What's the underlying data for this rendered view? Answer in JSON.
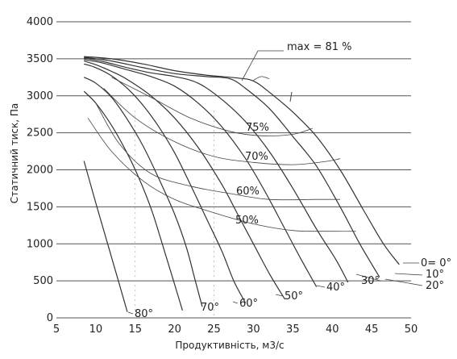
{
  "chart_data": {
    "type": "line",
    "title": "",
    "xlabel": "Продуктивність, м3/с",
    "ylabel": "Статичний тиск, Па",
    "xlim": [
      5,
      50
    ],
    "ylim": [
      0,
      4000
    ],
    "xticks": [
      "5",
      "10",
      "15",
      "20",
      "25",
      "30",
      "35",
      "40",
      "45",
      "50"
    ],
    "yticks": [
      "0",
      "500",
      "1000",
      "1500",
      "2000",
      "2500",
      "3000",
      "3500",
      "4000"
    ],
    "grid": "horizontal",
    "series": [
      {
        "label": "0= 0°",
        "points": [
          [
            8.5,
            3530
          ],
          [
            12,
            3500
          ],
          [
            16,
            3430
          ],
          [
            20,
            3340
          ],
          [
            24,
            3280
          ],
          [
            28,
            3240
          ],
          [
            30,
            3200
          ],
          [
            32,
            3050
          ],
          [
            35,
            2780
          ],
          [
            38,
            2450
          ],
          [
            41,
            2000
          ],
          [
            44,
            1450
          ],
          [
            46.5,
            1000
          ],
          [
            48.5,
            720
          ]
        ]
      },
      {
        "label": "10°",
        "points": [
          [
            8.5,
            3520
          ],
          [
            12,
            3470
          ],
          [
            16,
            3380
          ],
          [
            20,
            3300
          ],
          [
            24,
            3260
          ],
          [
            27,
            3230
          ],
          [
            29,
            3100
          ],
          [
            32,
            2830
          ],
          [
            35,
            2450
          ],
          [
            38,
            2050
          ],
          [
            41,
            1500
          ],
          [
            43.5,
            1000
          ],
          [
            46,
            550
          ]
        ]
      },
      {
        "label": "20°",
        "points": [
          [
            8.5,
            3510
          ],
          [
            11,
            3460
          ],
          [
            14,
            3380
          ],
          [
            17,
            3310
          ],
          [
            20,
            3260
          ],
          [
            23,
            3170
          ],
          [
            26,
            2950
          ],
          [
            29,
            2650
          ],
          [
            32,
            2250
          ],
          [
            35,
            1750
          ],
          [
            38,
            1200
          ],
          [
            40.5,
            780
          ],
          [
            42,
            480
          ]
        ]
      },
      {
        "label": "30°",
        "points": [
          [
            8.5,
            3490
          ],
          [
            11,
            3440
          ],
          [
            14,
            3350
          ],
          [
            17,
            3260
          ],
          [
            20,
            3130
          ],
          [
            23,
            2900
          ],
          [
            26,
            2580
          ],
          [
            29,
            2150
          ],
          [
            31.5,
            1700
          ],
          [
            34,
            1200
          ],
          [
            36,
            800
          ],
          [
            38,
            420
          ]
        ]
      },
      {
        "label": "40°",
        "points": [
          [
            8.5,
            3470
          ],
          [
            10,
            3420
          ],
          [
            12,
            3330
          ],
          [
            14,
            3220
          ],
          [
            17,
            3000
          ],
          [
            20,
            2700
          ],
          [
            23,
            2300
          ],
          [
            26,
            1800
          ],
          [
            28,
            1400
          ],
          [
            30,
            1000
          ],
          [
            32,
            600
          ],
          [
            34,
            250
          ]
        ]
      },
      {
        "label": "50°",
        "points": [
          [
            8.5,
            3430
          ],
          [
            10,
            3380
          ],
          [
            12,
            3270
          ],
          [
            14,
            3100
          ],
          [
            16,
            2870
          ],
          [
            18,
            2580
          ],
          [
            20,
            2230
          ],
          [
            22,
            1800
          ],
          [
            24,
            1350
          ],
          [
            26,
            900
          ],
          [
            27.5,
            500
          ],
          [
            29,
            200
          ]
        ]
      },
      {
        "label": "60°",
        "points": [
          [
            8.5,
            3250
          ],
          [
            10,
            3170
          ],
          [
            12,
            2980
          ],
          [
            14,
            2680
          ],
          [
            16,
            2320
          ],
          [
            18,
            1880
          ],
          [
            20,
            1400
          ],
          [
            21.5,
            950
          ],
          [
            22.5,
            550
          ],
          [
            23.5,
            150
          ]
        ]
      },
      {
        "label": "70°",
        "points": [
          [
            8.5,
            3060
          ],
          [
            10,
            2900
          ],
          [
            12,
            2600
          ],
          [
            14,
            2220
          ],
          [
            15.5,
            1880
          ],
          [
            17,
            1480
          ],
          [
            18,
            1150
          ],
          [
            19,
            800
          ],
          [
            20,
            450
          ],
          [
            21,
            100
          ]
        ]
      },
      {
        "label": "80°",
        "points": [
          [
            8.5,
            2120
          ],
          [
            10,
            1550
          ],
          [
            11.5,
            1000
          ],
          [
            13,
            450
          ],
          [
            14,
            80
          ]
        ]
      }
    ],
    "efficiency_curves": [
      {
        "label": "max = 81 %",
        "points": [
          [
            30,
            3210
          ],
          [
            31,
            3260
          ],
          [
            32,
            3230
          ]
        ]
      },
      {
        "label": "75%",
        "points": [
          [
            12,
            3250
          ],
          [
            17,
            2980
          ],
          [
            22,
            2700
          ],
          [
            27,
            2520
          ],
          [
            31,
            2460
          ],
          [
            35,
            2480
          ],
          [
            37.5,
            2560
          ]
        ]
      },
      {
        "label": "70%",
        "points": [
          [
            11,
            3100
          ],
          [
            15,
            2700
          ],
          [
            20,
            2380
          ],
          [
            25,
            2180
          ],
          [
            30,
            2100
          ],
          [
            35,
            2070
          ],
          [
            39,
            2110
          ],
          [
            41,
            2150
          ]
        ]
      },
      {
        "label": "60%",
        "points": [
          [
            10,
            2900
          ],
          [
            13,
            2350
          ],
          [
            17,
            1950
          ],
          [
            22,
            1780
          ],
          [
            27,
            1680
          ],
          [
            32,
            1600
          ],
          [
            38,
            1600
          ],
          [
            41,
            1600
          ]
        ]
      },
      {
        "label": "50%",
        "points": [
          [
            9,
            2700
          ],
          [
            12,
            2250
          ],
          [
            16,
            1850
          ],
          [
            20,
            1600
          ],
          [
            25,
            1420
          ],
          [
            30,
            1270
          ],
          [
            35,
            1180
          ],
          [
            40,
            1170
          ],
          [
            43,
            1170
          ]
        ]
      }
    ],
    "annotations": [
      "max = 81 %",
      "75%",
      "70%",
      "60%",
      "50%",
      "0= 0°",
      "10°",
      "20°",
      "30°",
      "40°",
      "50°",
      "60°",
      "70°",
      "80°"
    ]
  }
}
